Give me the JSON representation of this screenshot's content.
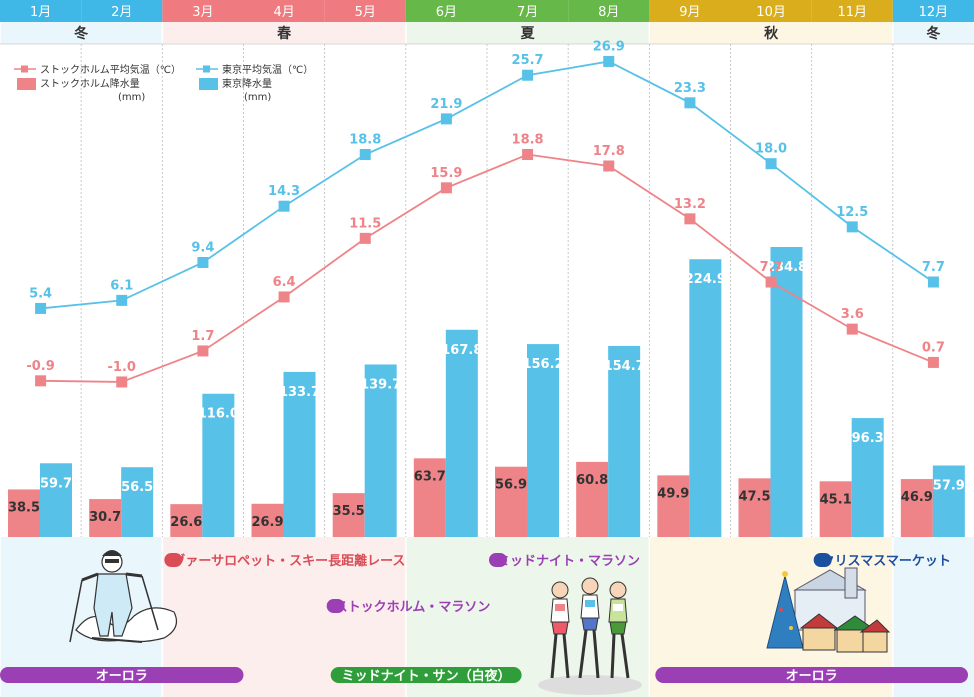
{
  "chart_data": {
    "type": "bar+line",
    "categories": [
      "1月",
      "2月",
      "3月",
      "4月",
      "5月",
      "6月",
      "7月",
      "8月",
      "9月",
      "10月",
      "11月",
      "12月"
    ],
    "seasons": [
      {
        "name": "冬",
        "start": 0,
        "end": 2,
        "color": "#3fb8e8",
        "bg": "#e9f6fc"
      },
      {
        "name": "春",
        "start": 2,
        "end": 5,
        "color": "#ef7a7f",
        "bg": "#fdeeee"
      },
      {
        "name": "夏",
        "start": 5,
        "end": 8,
        "color": "#66b848",
        "bg": "#edf6ea"
      },
      {
        "name": "秋",
        "start": 8,
        "end": 11,
        "color": "#d9ad1c",
        "bg": "#fdf6e3"
      },
      {
        "name": "冬",
        "start": 11,
        "end": 12,
        "color": "#3fb8e8",
        "bg": "#e9f6fc"
      }
    ],
    "series": [
      {
        "name": "ストックホルム平均気温（℃）",
        "kind": "line",
        "color": "#ee8388",
        "values": [
          -0.9,
          -1.0,
          1.7,
          6.4,
          11.5,
          15.9,
          18.8,
          17.8,
          13.2,
          7.7,
          3.6,
          0.7
        ]
      },
      {
        "name": "東京平均気温（℃）",
        "kind": "line",
        "color": "#57c1e8",
        "values": [
          5.4,
          6.1,
          9.4,
          14.3,
          18.8,
          21.9,
          25.7,
          26.9,
          23.3,
          18.0,
          12.5,
          7.7
        ]
      },
      {
        "name": "ストックホルム降水量",
        "unit": "(mm)",
        "kind": "bar",
        "color": "#ee8388",
        "values": [
          38.5,
          30.7,
          26.6,
          26.9,
          35.5,
          63.7,
          56.9,
          60.8,
          49.9,
          47.5,
          45.1,
          46.9
        ]
      },
      {
        "name": "東京降水量",
        "unit": "(mm)",
        "kind": "bar",
        "color": "#57c1e8",
        "values": [
          59.7,
          56.5,
          116.0,
          133.7,
          139.7,
          167.8,
          156.2,
          154.7,
          224.9,
          234.8,
          96.3,
          57.9
        ]
      }
    ]
  },
  "events": [
    {
      "label": "ヴァーサロペット・スキー長距離レース",
      "color": "#d94d57",
      "start": 2,
      "end": 6
    },
    {
      "label": "ミッドナイト・マラソン",
      "color": "#9b3fb5",
      "start": 6,
      "end": 8
    },
    {
      "label": "クリスマスマーケット",
      "color": "#1d4fa0",
      "start": 10,
      "end": 12
    },
    {
      "label": "ストックホルム・マラソン",
      "color": "#9b3fb5",
      "start": 4,
      "end": 7
    },
    {
      "label": "オーロラ",
      "color": "#9b3fb5",
      "start": 0,
      "end": 3
    },
    {
      "label": "ミッドナイト・サン（白夜）",
      "color": "#2f9e3a",
      "start": 4,
      "end": 6.5
    },
    {
      "label": "オーロラ",
      "color": "#9b3fb5",
      "start": 8,
      "end": 12
    }
  ],
  "illustrations": [
    {
      "name": "skier-illustration"
    },
    {
      "name": "marathon-runners-illustration"
    },
    {
      "name": "christmas-market-illustration"
    }
  ]
}
